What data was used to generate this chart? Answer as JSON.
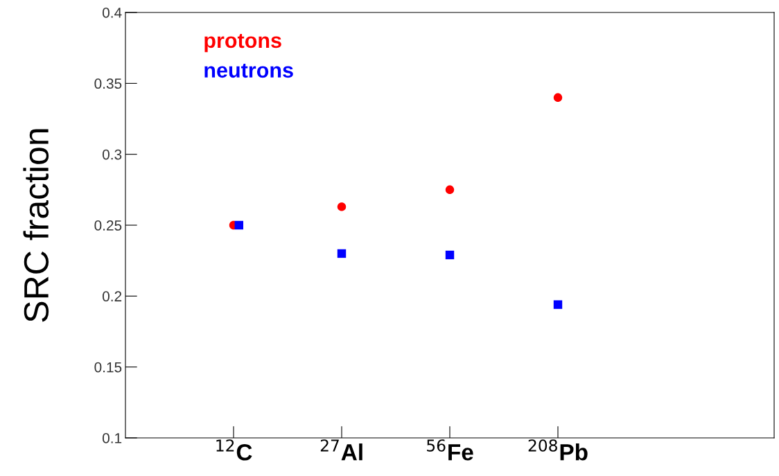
{
  "chart_data": {
    "type": "scatter",
    "ylabel": "SRC fraction",
    "categories": [
      null,
      "$^{12}$C",
      "$^{27}$Al",
      "$^{56}$Fe",
      "$^{208}$Pb",
      null,
      null
    ],
    "ylim": [
      0.1,
      0.4
    ],
    "yticks": [
      0.1,
      0.15,
      0.2,
      0.25,
      0.3,
      0.35,
      0.4
    ],
    "grid": false,
    "series": [
      {
        "name": "protons",
        "color": "#ff0000",
        "marker": "circle",
        "values": [
          null,
          0.25,
          0.263,
          0.275,
          0.34,
          null,
          null
        ]
      },
      {
        "name": "neutrons",
        "color": "#0000ff",
        "marker": "square",
        "values": [
          null,
          0.25,
          0.23,
          0.229,
          0.194,
          null,
          null
        ]
      }
    ]
  }
}
